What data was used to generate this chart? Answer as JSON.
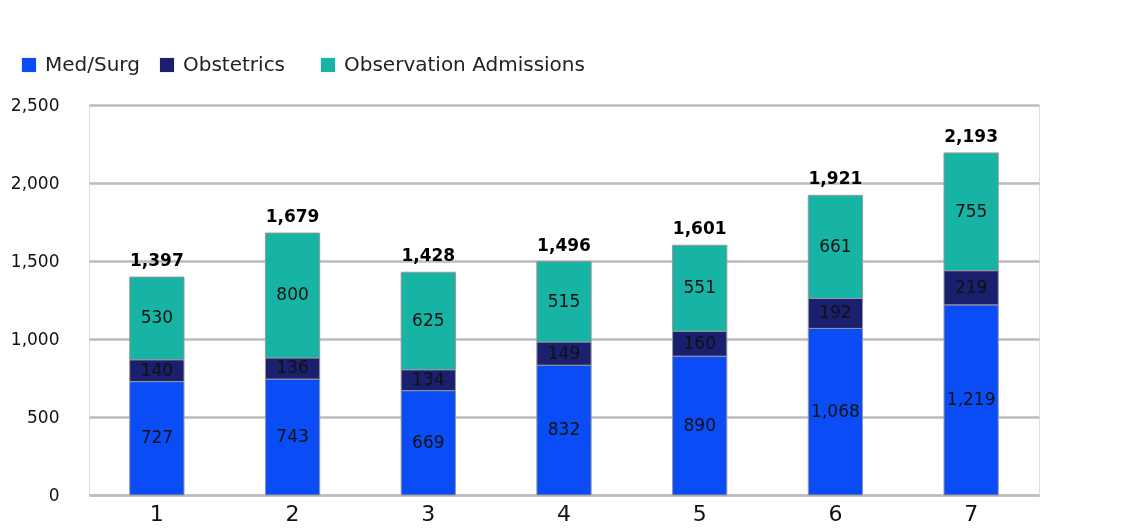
{
  "chart_data": {
    "type": "bar",
    "stacked": true,
    "categories": [
      "1",
      "2",
      "3",
      "4",
      "5",
      "6",
      "7"
    ],
    "series": [
      {
        "name": "Med/Surg",
        "color": "#0a4cf5",
        "values": [
          727,
          743,
          669,
          832,
          890,
          1068,
          1219
        ],
        "value_labels": [
          "727",
          "743",
          "669",
          "832",
          "890",
          "1,068",
          "1,219"
        ]
      },
      {
        "name": "Obstetrics",
        "color": "#1a1f6e",
        "values": [
          140,
          136,
          134,
          149,
          160,
          192,
          219
        ],
        "value_labels": [
          "140",
          "136",
          "134",
          "149",
          "160",
          "192",
          "219"
        ]
      },
      {
        "name": "Observation Admissions",
        "color": "#17b3a5",
        "values": [
          530,
          800,
          625,
          515,
          551,
          661,
          755
        ],
        "value_labels": [
          "530",
          "800",
          "625",
          "515",
          "551",
          "661",
          "755"
        ]
      }
    ],
    "totals": [
      "1,397",
      "1,679",
      "1,428",
      "1,496",
      "1,601",
      "1,921",
      "2,193"
    ],
    "ylim": [
      0,
      2500
    ],
    "yticks": [
      0,
      500,
      {
        "value": 1000,
        "label": "1,000"
      },
      {
        "value": 1500,
        "label": "1,500"
      },
      {
        "value": 2000,
        "label": "2,000"
      },
      {
        "value": 2500,
        "label": "2,500"
      }
    ],
    "grid": "y",
    "legend": "top left"
  }
}
